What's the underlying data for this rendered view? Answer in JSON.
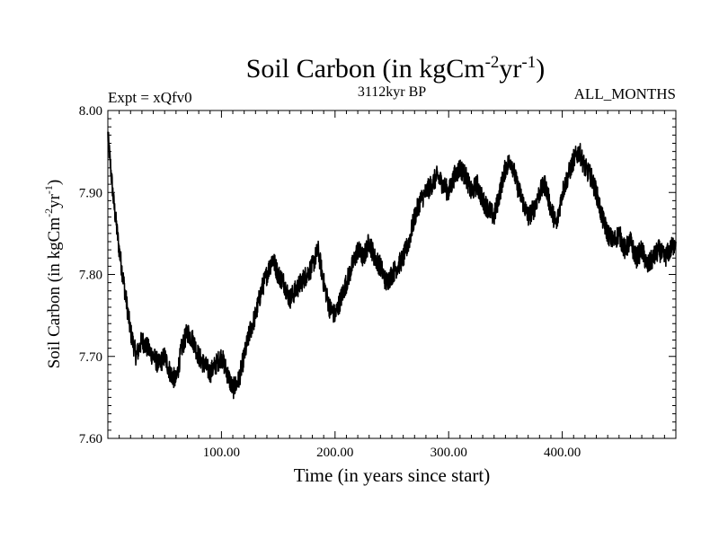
{
  "chart_data": {
    "type": "line",
    "title": "Soil Carbon (in kgCm",
    "title_units_sup1": "-2",
    "title_units_mid": "yr",
    "title_units_sup2": "-1",
    "title_units_end": ")",
    "subtitle_left": "Expt = xQfv0",
    "subtitle_center": "3112kyr BP",
    "subtitle_right": "ALL_MONTHS",
    "xlabel": "Time (in years since start)",
    "ylabel": "Soil Carbon (in kgCm",
    "ylabel_sup1": "-2",
    "ylabel_mid": "yr",
    "ylabel_sup2": "-1",
    "ylabel_end": ")",
    "xlim": [
      0,
      500
    ],
    "ylim": [
      7.6,
      8.0
    ],
    "xticks": [
      100,
      200,
      300,
      400
    ],
    "xtick_labels": [
      "100.00",
      "200.00",
      "300.00",
      "400.00"
    ],
    "yticks": [
      7.6,
      7.7,
      7.8,
      7.9,
      8.0
    ],
    "ytick_labels": [
      "7.60",
      "7.70",
      "7.80",
      "7.90",
      "8.00"
    ],
    "series": [
      {
        "name": "Soil Carbon",
        "color": "#000000",
        "x": [
          0,
          5,
          10,
          15,
          20,
          25,
          30,
          35,
          40,
          45,
          50,
          55,
          60,
          65,
          70,
          75,
          80,
          85,
          90,
          95,
          100,
          105,
          110,
          115,
          120,
          125,
          130,
          135,
          140,
          145,
          150,
          155,
          160,
          165,
          170,
          175,
          180,
          185,
          190,
          195,
          200,
          205,
          210,
          215,
          220,
          225,
          230,
          235,
          240,
          245,
          250,
          255,
          260,
          265,
          270,
          275,
          280,
          285,
          290,
          295,
          300,
          305,
          310,
          315,
          320,
          325,
          330,
          335,
          340,
          345,
          350,
          355,
          360,
          365,
          370,
          375,
          380,
          385,
          390,
          395,
          400,
          405,
          410,
          415,
          420,
          425,
          430,
          435,
          440,
          445,
          450,
          455,
          460,
          465,
          470,
          475,
          480,
          485,
          490,
          495,
          500
        ],
        "values": [
          7.97,
          7.89,
          7.83,
          7.78,
          7.73,
          7.7,
          7.72,
          7.71,
          7.7,
          7.69,
          7.7,
          7.68,
          7.67,
          7.71,
          7.73,
          7.72,
          7.7,
          7.69,
          7.68,
          7.69,
          7.7,
          7.68,
          7.66,
          7.67,
          7.7,
          7.73,
          7.75,
          7.78,
          7.8,
          7.82,
          7.8,
          7.79,
          7.77,
          7.78,
          7.79,
          7.8,
          7.81,
          7.83,
          7.79,
          7.76,
          7.75,
          7.77,
          7.79,
          7.81,
          7.83,
          7.82,
          7.84,
          7.82,
          7.81,
          7.79,
          7.8,
          7.81,
          7.82,
          7.84,
          7.87,
          7.89,
          7.9,
          7.91,
          7.92,
          7.91,
          7.9,
          7.92,
          7.93,
          7.92,
          7.9,
          7.91,
          7.89,
          7.88,
          7.87,
          7.9,
          7.93,
          7.94,
          7.91,
          7.89,
          7.87,
          7.88,
          7.9,
          7.91,
          7.88,
          7.86,
          7.9,
          7.92,
          7.94,
          7.95,
          7.93,
          7.92,
          7.9,
          7.87,
          7.85,
          7.84,
          7.85,
          7.83,
          7.84,
          7.82,
          7.83,
          7.81,
          7.82,
          7.83,
          7.82,
          7.83,
          7.84
        ]
      }
    ]
  }
}
